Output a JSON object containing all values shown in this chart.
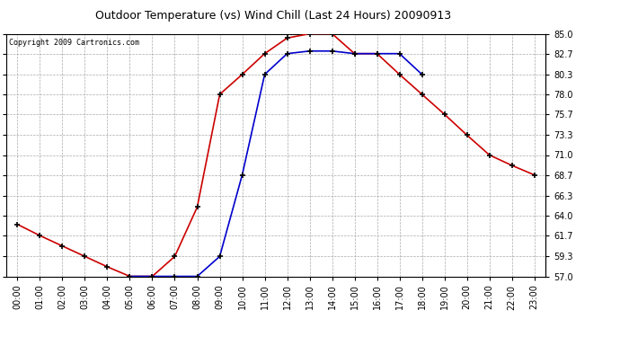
{
  "title": "Outdoor Temperature (vs) Wind Chill (Last 24 Hours) 20090913",
  "copyright": "Copyright 2009 Cartronics.com",
  "hours": [
    0,
    1,
    2,
    3,
    4,
    5,
    6,
    7,
    8,
    9,
    10,
    11,
    12,
    13,
    14,
    15,
    16,
    17,
    18,
    19,
    20,
    21,
    22,
    23
  ],
  "temp": [
    63.0,
    61.7,
    60.5,
    59.3,
    58.1,
    57.0,
    57.0,
    59.3,
    65.0,
    78.0,
    80.3,
    82.7,
    84.5,
    85.0,
    85.0,
    82.7,
    82.7,
    80.3,
    78.0,
    75.7,
    73.3,
    71.0,
    69.8,
    68.7
  ],
  "windchill": [
    null,
    null,
    null,
    null,
    null,
    57.0,
    57.0,
    57.0,
    57.0,
    59.3,
    68.7,
    80.3,
    82.7,
    83.0,
    83.0,
    82.7,
    82.7,
    82.7,
    80.3,
    null,
    null,
    null,
    null,
    null
  ],
  "temp_color": "#cc0000",
  "windchill_color": "#0000cc",
  "bg_color": "#ffffff",
  "plot_bg_color": "#ffffff",
  "grid_color": "#aaaaaa",
  "ylim": [
    57.0,
    85.0
  ],
  "yticks": [
    57.0,
    59.3,
    61.7,
    64.0,
    66.3,
    68.7,
    71.0,
    73.3,
    75.7,
    78.0,
    80.3,
    82.7,
    85.0
  ],
  "marker": "+",
  "marker_color": "#000000",
  "marker_size": 5,
  "linewidth": 1.2,
  "title_fontsize": 9,
  "tick_fontsize": 7,
  "copyright_fontsize": 6
}
